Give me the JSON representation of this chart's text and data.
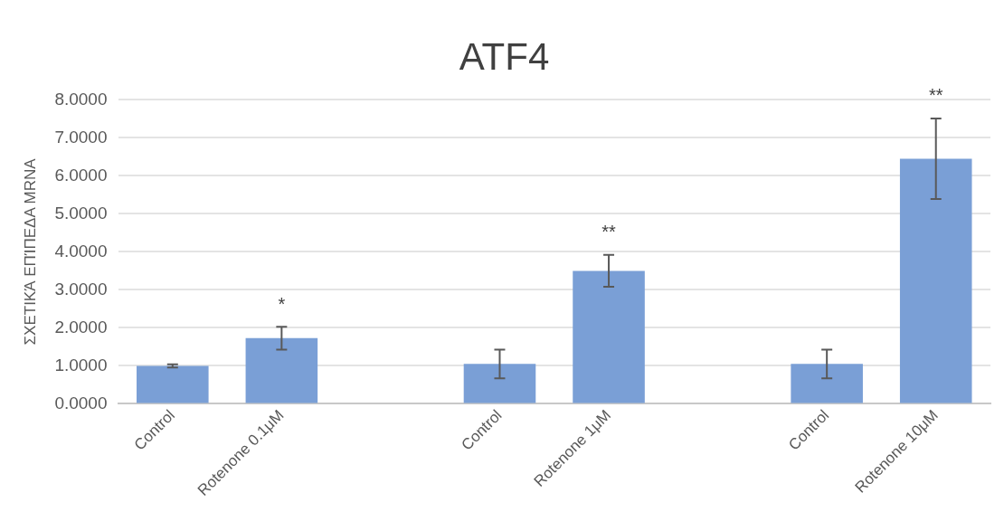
{
  "chart_data": {
    "type": "bar",
    "title": "ATF4",
    "ylabel": "ΣΧΕΤΙΚΆ ΕΠΊΠΕΔΑ MRNA",
    "categories": [
      "Control",
      "Rotenone 0.1μM",
      null,
      "Control",
      "Rotenone 1μM",
      null,
      "Control",
      "Rotenone 10μM"
    ],
    "values": [
      1.0,
      1.73,
      null,
      1.05,
      3.5,
      null,
      1.05,
      6.45
    ],
    "errors": [
      0.04,
      0.3,
      null,
      0.38,
      0.42,
      null,
      0.38,
      1.06
    ],
    "color": "#7a9fd6",
    "ylim": [
      0,
      8
    ],
    "yticks": [
      {
        "value": 0,
        "label": "0.0000"
      },
      {
        "value": 1,
        "label": "1.0000"
      },
      {
        "value": 2,
        "label": "2.0000"
      },
      {
        "value": 3,
        "label": "3.0000"
      },
      {
        "value": 4,
        "label": "4.0000"
      },
      {
        "value": 5,
        "label": "5.0000"
      },
      {
        "value": 6,
        "label": "6.0000"
      },
      {
        "value": 7,
        "label": "7.0000"
      },
      {
        "value": 8,
        "label": "8.0000"
      }
    ],
    "grid": "y",
    "legend": false,
    "annotations": [
      "*",
      "**",
      "**"
    ]
  }
}
